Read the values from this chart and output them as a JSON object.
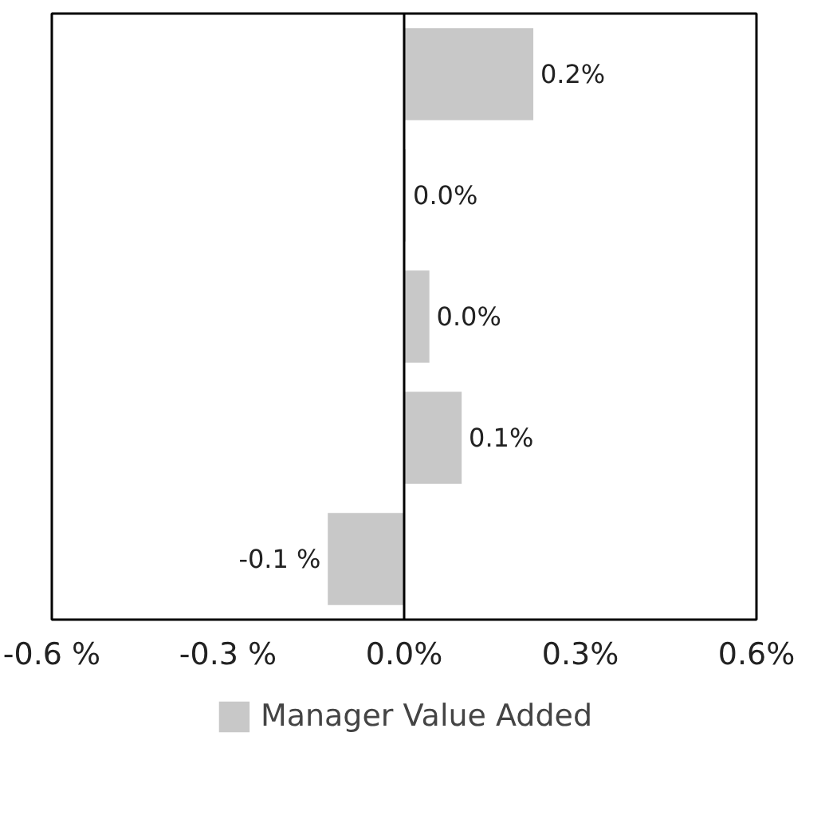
{
  "chart_data": {
    "type": "bar",
    "orientation": "horizontal",
    "categories": [
      null,
      null,
      null,
      null,
      null
    ],
    "series": [
      {
        "name": "Manager Value Added",
        "color": "#c8c8c8",
        "values": [
          0.22,
          0.003,
          0.043,
          0.098,
          -0.13
        ],
        "value_labels": [
          "0.2%",
          "0.0%",
          "0.0%",
          "0.1%",
          "-0.1 %"
        ]
      }
    ],
    "xlim": [
      -0.6,
      0.6
    ],
    "xticks": [
      {
        "value": -0.6,
        "label": "-0.6 %"
      },
      {
        "value": -0.3,
        "label": "-0.3 %"
      },
      {
        "value": 0,
        "label": "0.0%"
      },
      {
        "value": 0.3,
        "label": "0.3%"
      },
      {
        "value": 0.6,
        "label": "0.6%"
      }
    ],
    "ref_lines": [
      {
        "axis": "x",
        "value": 0,
        "color": "#000000"
      }
    ],
    "grid": false,
    "legend": "bottom"
  }
}
